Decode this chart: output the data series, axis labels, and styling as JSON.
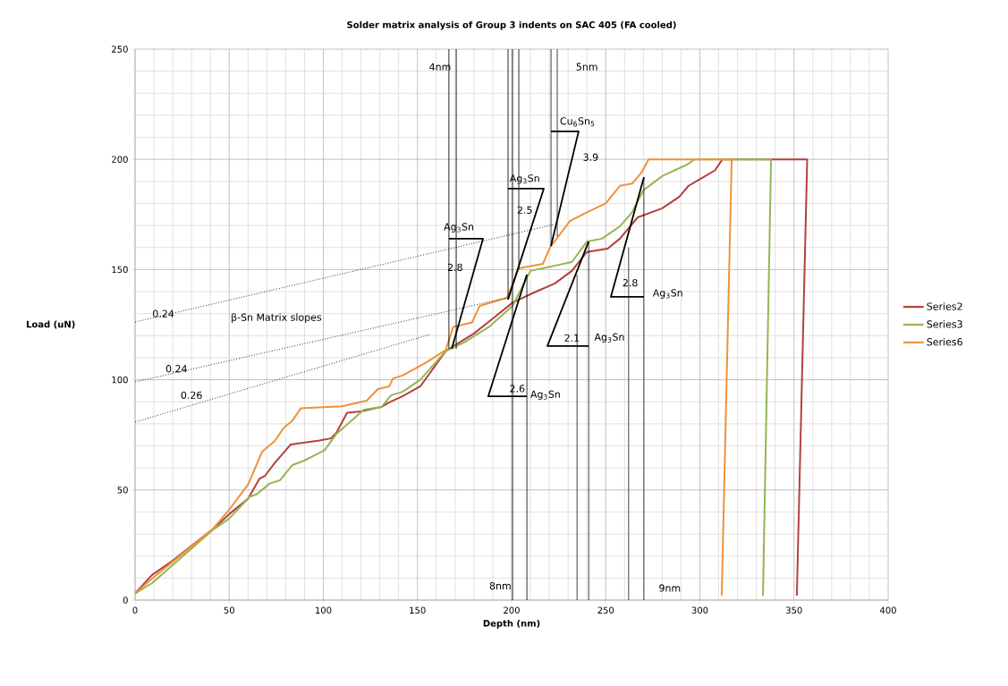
{
  "chart_data": {
    "type": "line",
    "title": "Solder matrix analysis of Group 3 indents on SAC 405 (FA cooled)",
    "xlabel": "Depth (nm)",
    "ylabel": "Load (uN)",
    "xlim": [
      0,
      400
    ],
    "ylim": [
      0,
      250
    ],
    "xticks": [
      0,
      50,
      100,
      150,
      200,
      250,
      300,
      350,
      400
    ],
    "yticks": [
      0,
      50,
      100,
      150,
      200,
      250
    ],
    "grid": true,
    "legend": "right",
    "marker": "none",
    "series": [
      {
        "name": "Series2",
        "color": "#b3403d",
        "x": [
          0,
          9,
          20,
          41,
          50,
          60,
          66,
          69,
          74,
          82.6,
          98,
          104,
          107,
          112.6,
          120,
          131,
          135,
          142,
          151.5,
          165,
          180,
          189.5,
          200.5,
          212,
          223,
          232,
          240,
          251,
          257.5,
          267,
          280,
          289,
          294,
          300,
          308,
          312,
          357,
          351.5
        ],
        "values": [
          3,
          11.4,
          17.9,
          32,
          39,
          46,
          55,
          56.4,
          62,
          70.6,
          72.4,
          73.4,
          76,
          85,
          85.6,
          87.7,
          89.7,
          92.5,
          97,
          113,
          121,
          127.4,
          135,
          139.6,
          143.7,
          149.4,
          158,
          159.5,
          164,
          173.7,
          177.8,
          183,
          188,
          191,
          195,
          200,
          200,
          2
        ]
      },
      {
        "name": "Series3",
        "color": "#93b653",
        "x": [
          0,
          9,
          41,
          50,
          61,
          64.5,
          71.7,
          77,
          83.6,
          89.8,
          96,
          100.7,
          107,
          115,
          121.6,
          131,
          136,
          142,
          151.5,
          165,
          175,
          188,
          200.5,
          210,
          232,
          240,
          248,
          257.5,
          264,
          270,
          280,
          294,
          297,
          337.8,
          333.5
        ],
        "values": [
          3,
          7.7,
          31.7,
          37,
          47,
          48,
          53,
          54.4,
          61.3,
          63.3,
          66,
          68,
          75.5,
          81.5,
          86.4,
          87.7,
          93,
          94.5,
          100,
          113,
          117,
          124,
          133.5,
          149.4,
          153.4,
          162.7,
          164,
          169.6,
          176,
          186,
          192.4,
          198,
          200,
          200,
          2
        ]
      },
      {
        "name": "Series6",
        "color": "#f0913a",
        "x": [
          0,
          9,
          41,
          50,
          60,
          67.5,
          74,
          79,
          83.6,
          88,
          110,
          123,
          129,
          135,
          137,
          142,
          155,
          165,
          169,
          179,
          183,
          197.6,
          203.8,
          216.6,
          220.4,
          231,
          240,
          250,
          257.5,
          264,
          269,
          272.7,
          316.9,
          311.6
        ],
        "values": [
          3,
          9.7,
          32,
          41,
          52.4,
          67.4,
          72,
          78.2,
          81.5,
          87,
          88,
          90.5,
          95.8,
          97,
          100.6,
          101.9,
          108,
          113.5,
          124,
          126,
          133.5,
          137.2,
          150.6,
          152.6,
          160,
          172,
          176,
          180,
          188,
          189,
          194,
          200,
          200,
          2
        ]
      },
      {
        "color": "#000000",
        "line_style": "dotted",
        "x": [
          0,
          222.8
        ],
        "values": [
          126.2,
          170.5
        ]
      },
      {
        "color": "#000000",
        "line_style": "dotted",
        "x": [
          0,
          197.6
        ],
        "values": [
          99,
          137.2
        ]
      },
      {
        "color": "#000000",
        "line_style": "dotted",
        "x": [
          0,
          156.3
        ],
        "values": [
          80.8,
          120.5
        ]
      },
      {
        "color": "#000000",
        "x": [
          166.7,
          166.7
        ],
        "values": [
          250,
          114
        ]
      },
      {
        "color": "#000000",
        "x": [
          170.6,
          170.6
        ],
        "values": [
          250,
          114
        ]
      },
      {
        "color": "#000000",
        "x": [
          166.7,
          184.8,
          168.2
        ],
        "values": [
          164,
          164,
          114
        ]
      },
      {
        "color": "#000000",
        "x": [
          198.1,
          198.1
        ],
        "values": [
          250,
          136.4
        ]
      },
      {
        "color": "#000000",
        "x": [
          200.5,
          200.5
        ],
        "values": [
          250,
          0
        ]
      },
      {
        "color": "#000000",
        "x": [
          203.8,
          203.8
        ],
        "values": [
          250,
          150
        ]
      },
      {
        "color": "#000000",
        "x": [
          198.1,
          217.1,
          198.1
        ],
        "values": [
          186.7,
          186.7,
          136.4
        ]
      },
      {
        "color": "#000000",
        "x": [
          208.1,
          208.1
        ],
        "values": [
          0,
          147.7
        ]
      },
      {
        "color": "#000000",
        "x": [
          208.1,
          187.6,
          208.1
        ],
        "values": [
          147.7,
          92.5,
          92.5
        ]
      },
      {
        "color": "#000000",
        "x": [
          220.9,
          220.9
        ],
        "values": [
          250,
          160.7
        ]
      },
      {
        "color": "#000000",
        "x": [
          224.2,
          224.2
        ],
        "values": [
          250,
          165
        ]
      },
      {
        "color": "#000000",
        "x": [
          220.9,
          235.6,
          220.9
        ],
        "values": [
          212.7,
          212.7,
          160.7
        ]
      },
      {
        "color": "#000000",
        "x": [
          240.9,
          240.9
        ],
        "values": [
          0,
          162.7
        ]
      },
      {
        "color": "#000000",
        "x": [
          234.7,
          234.7
        ],
        "values": [
          0,
          147.7
        ]
      },
      {
        "color": "#000000",
        "x": [
          240.9,
          219,
          240.9
        ],
        "values": [
          162.7,
          115.3,
          115.3
        ]
      },
      {
        "color": "#000000",
        "x": [
          270.3,
          270.3
        ],
        "values": [
          0,
          192
        ]
      },
      {
        "color": "#000000",
        "x": [
          262.2,
          262.2
        ],
        "values": [
          0,
          160
        ]
      },
      {
        "color": "#000000",
        "x": [
          270.3,
          252.7,
          270.3
        ],
        "values": [
          192,
          137.6,
          137.6
        ]
      }
    ],
    "annotations": [
      "0.24",
      "0.24",
      "0.26",
      "β-Sn Matrix slopes",
      "4nm",
      "5nm",
      "8nm",
      "9nm",
      "Ag$_{3}$Sn",
      "2.8",
      "Ag$_{3}$Sn",
      "2.5",
      "Cu$_{6}$Sn$_{5}$",
      "3.9",
      "2.8",
      "Ag$_{3}$Sn",
      "2.1",
      "Ag$_{3}$Sn",
      "2.6",
      "Ag$_{3}$Sn"
    ]
  }
}
